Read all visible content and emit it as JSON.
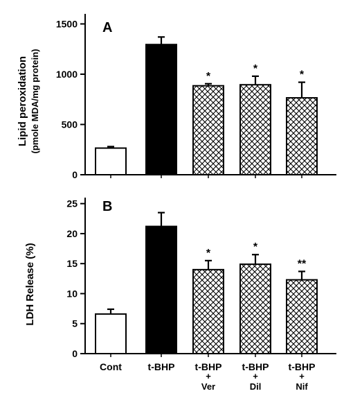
{
  "chart_data": [
    {
      "type": "bar",
      "panel_label": "A",
      "ylabel": "Lipid peroxidation",
      "ylabel_sub": "(pmole MDA/mg protein)",
      "ylim": [
        0,
        1600
      ],
      "yticks": [
        0,
        500,
        1000,
        1500
      ],
      "categories": [
        "Cont",
        "t-BHP",
        "t-BHP + Ver",
        "t-BHP + Dil",
        "t-BHP + Nif"
      ],
      "values": [
        265,
        1295,
        885,
        895,
        765
      ],
      "errors": [
        15,
        75,
        20,
        85,
        155
      ],
      "significance": [
        "",
        "",
        "*",
        "*",
        "*"
      ],
      "bar_styles": [
        "white",
        "black",
        "crosshatch",
        "crosshatch",
        "crosshatch"
      ]
    },
    {
      "type": "bar",
      "panel_label": "B",
      "ylabel": "LDH Release (%)",
      "ylim": [
        0,
        26
      ],
      "yticks": [
        0,
        5,
        10,
        15,
        20,
        25
      ],
      "categories": [
        "Cont",
        "t-BHP",
        "t-BHP + Ver",
        "t-BHP + Dil",
        "t-BHP + Nif"
      ],
      "values": [
        6.6,
        21.2,
        14.0,
        14.9,
        12.3
      ],
      "errors": [
        0.8,
        2.3,
        1.5,
        1.6,
        1.4
      ],
      "significance": [
        "",
        "",
        "*",
        "*",
        "**"
      ],
      "bar_styles": [
        "white",
        "black",
        "crosshatch",
        "crosshatch",
        "crosshatch"
      ]
    }
  ],
  "x_axis": {
    "labels": [
      {
        "main": "Cont",
        "plus": "",
        "sub": ""
      },
      {
        "main": "t-BHP",
        "plus": "",
        "sub": ""
      },
      {
        "main": "t-BHP",
        "plus": "+",
        "sub": "Ver"
      },
      {
        "main": "t-BHP",
        "plus": "+",
        "sub": "Dil"
      },
      {
        "main": "t-BHP",
        "plus": "+",
        "sub": "Nif"
      }
    ]
  },
  "colors": {
    "axis": "#000000",
    "bar_white": "#ffffff",
    "bar_black": "#000000",
    "hatch": "#000000"
  }
}
